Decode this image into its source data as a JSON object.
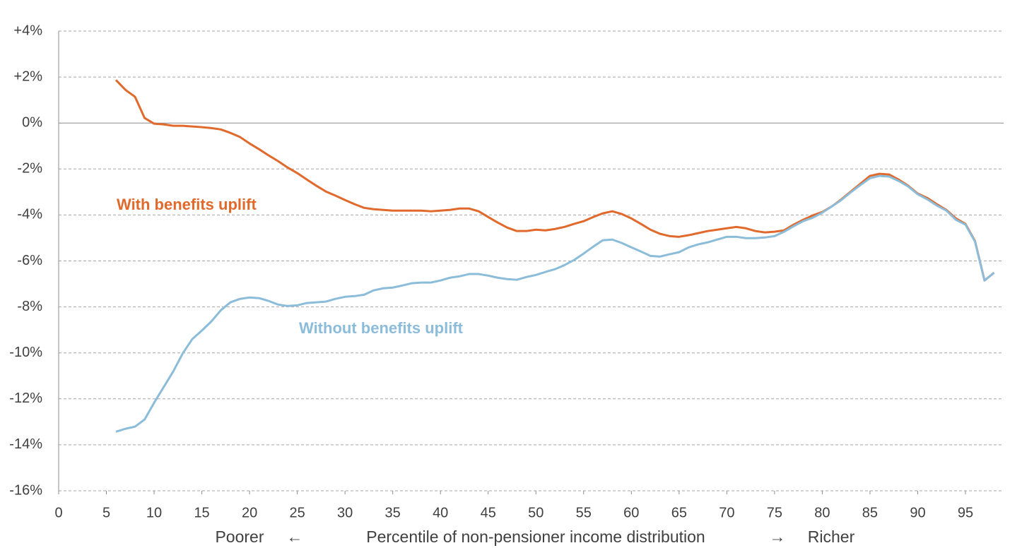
{
  "chart_data": {
    "type": "line",
    "xlabel": "Percentile of non-pensioner income distribution",
    "annotations": [
      "Poorer",
      "←",
      "→",
      "Richer"
    ],
    "x": [
      6,
      7,
      8,
      9,
      10,
      11,
      12,
      13,
      14,
      15,
      16,
      17,
      18,
      19,
      20,
      21,
      22,
      23,
      24,
      25,
      26,
      27,
      28,
      29,
      30,
      31,
      32,
      33,
      34,
      35,
      36,
      37,
      38,
      39,
      40,
      41,
      42,
      43,
      44,
      45,
      46,
      47,
      48,
      49,
      50,
      51,
      52,
      53,
      54,
      55,
      56,
      57,
      58,
      59,
      60,
      61,
      62,
      63,
      64,
      65,
      66,
      67,
      68,
      69,
      70,
      71,
      72,
      73,
      74,
      75,
      76,
      77,
      78,
      79,
      80,
      81,
      82,
      83,
      84,
      85,
      86,
      87,
      88,
      89,
      90,
      91,
      92,
      93,
      94,
      95,
      96,
      97,
      98
    ],
    "series": [
      {
        "name": "With benefits uplift",
        "color": "#e0692b",
        "values": [
          1.87,
          1.44,
          1.14,
          0.22,
          -0.03,
          -0.06,
          -0.12,
          -0.12,
          -0.15,
          -0.18,
          -0.22,
          -0.28,
          -0.43,
          -0.61,
          -0.89,
          -1.14,
          -1.41,
          -1.66,
          -1.94,
          -2.18,
          -2.46,
          -2.73,
          -2.98,
          -3.16,
          -3.35,
          -3.53,
          -3.69,
          -3.75,
          -3.78,
          -3.81,
          -3.81,
          -3.81,
          -3.81,
          -3.84,
          -3.81,
          -3.78,
          -3.72,
          -3.72,
          -3.84,
          -4.09,
          -4.33,
          -4.55,
          -4.7,
          -4.7,
          -4.64,
          -4.67,
          -4.61,
          -4.52,
          -4.39,
          -4.27,
          -4.09,
          -3.93,
          -3.84,
          -3.96,
          -4.15,
          -4.39,
          -4.64,
          -4.82,
          -4.92,
          -4.95,
          -4.88,
          -4.79,
          -4.7,
          -4.64,
          -4.58,
          -4.52,
          -4.58,
          -4.7,
          -4.76,
          -4.73,
          -4.67,
          -4.42,
          -4.21,
          -4.02,
          -3.87,
          -3.63,
          -3.32,
          -2.98,
          -2.64,
          -2.3,
          -2.21,
          -2.24,
          -2.46,
          -2.73,
          -3.07,
          -3.26,
          -3.53,
          -3.78,
          -4.15,
          -4.39,
          -5.13,
          -6.85,
          -6.51
        ]
      },
      {
        "name": "Without benefits uplift",
        "color": "#8bbcd9",
        "values": [
          -13.43,
          -13.3,
          -13.21,
          -12.9,
          -12.17,
          -11.49,
          -10.81,
          -10.02,
          -9.4,
          -9.03,
          -8.63,
          -8.14,
          -7.8,
          -7.65,
          -7.59,
          -7.62,
          -7.74,
          -7.9,
          -7.96,
          -7.93,
          -7.83,
          -7.8,
          -7.77,
          -7.65,
          -7.56,
          -7.53,
          -7.47,
          -7.28,
          -7.19,
          -7.16,
          -7.07,
          -6.97,
          -6.94,
          -6.94,
          -6.85,
          -6.73,
          -6.67,
          -6.57,
          -6.57,
          -6.64,
          -6.73,
          -6.79,
          -6.82,
          -6.7,
          -6.61,
          -6.48,
          -6.36,
          -6.18,
          -5.96,
          -5.68,
          -5.38,
          -5.1,
          -5.07,
          -5.22,
          -5.41,
          -5.59,
          -5.78,
          -5.81,
          -5.71,
          -5.62,
          -5.41,
          -5.28,
          -5.19,
          -5.07,
          -4.95,
          -4.95,
          -5.01,
          -5.01,
          -4.98,
          -4.92,
          -4.73,
          -4.49,
          -4.27,
          -4.12,
          -3.9,
          -3.63,
          -3.35,
          -3.01,
          -2.7,
          -2.4,
          -2.3,
          -2.33,
          -2.52,
          -2.76,
          -3.1,
          -3.32,
          -3.59,
          -3.81,
          -4.21,
          -4.42,
          -5.16,
          -6.85,
          -6.51
        ]
      }
    ],
    "xlim": [
      0,
      99
    ],
    "xticks": [
      0,
      5,
      10,
      15,
      20,
      25,
      30,
      35,
      40,
      45,
      50,
      55,
      60,
      65,
      70,
      75,
      80,
      85,
      90,
      95
    ],
    "ylim": [
      -16,
      4
    ],
    "yticks": [
      {
        "value": 4,
        "label": "+4%"
      },
      {
        "value": 2,
        "label": "+2%"
      },
      {
        "value": 0,
        "label": "0%"
      },
      {
        "value": -2,
        "label": "-2%"
      },
      {
        "value": -4,
        "label": "-4%"
      },
      {
        "value": -6,
        "label": "-6%"
      },
      {
        "value": -8,
        "label": "-8%"
      },
      {
        "value": -10,
        "label": "-10%"
      },
      {
        "value": -12,
        "label": "-12%"
      },
      {
        "value": -14,
        "label": "-14%"
      },
      {
        "value": -16,
        "label": "-16%"
      }
    ],
    "grid": true
  }
}
